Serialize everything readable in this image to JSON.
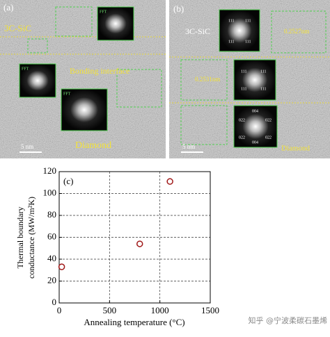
{
  "panels": {
    "a": {
      "label": "(a)",
      "top_layer": "3C-SiC",
      "fft": [
        "FFT",
        "FFT",
        "FFT"
      ],
      "interface": "Bonding interface",
      "scale": "5 nm",
      "bottom_layer": "Diamond"
    },
    "b": {
      "label": "(b)",
      "top_layer": "3C-SiC",
      "spacing_top": "0.2527nm",
      "spacing_mid": "0.2531nm",
      "top_fft_indices": [
        "111",
        "111",
        "111",
        "111"
      ],
      "mid_fft_indices": [
        "111",
        "111",
        "111",
        "111"
      ],
      "bottom_fft_indices": [
        "004",
        "022",
        "022",
        "022",
        "022",
        "004"
      ],
      "scale": "5 nm",
      "bottom_layer": "Diamond"
    }
  },
  "chart_data": {
    "type": "scatter",
    "panel_label": "(c)",
    "x_label": "Annealing temperature (°C)",
    "y_label": [
      "Thermal boundary",
      "conductance (MW/m²K)"
    ],
    "x": [
      25,
      800,
      1100
    ],
    "values": [
      33,
      54,
      111
    ],
    "color": "#a01818",
    "xlim": [
      0,
      1500
    ],
    "ylim": [
      0,
      120
    ],
    "xticks": [
      0,
      500,
      1000,
      1500
    ],
    "yticks": [
      0,
      20,
      40,
      60,
      80,
      100,
      120
    ],
    "grid": true
  },
  "watermark": "知乎 @宁波柔碳石墨烯"
}
